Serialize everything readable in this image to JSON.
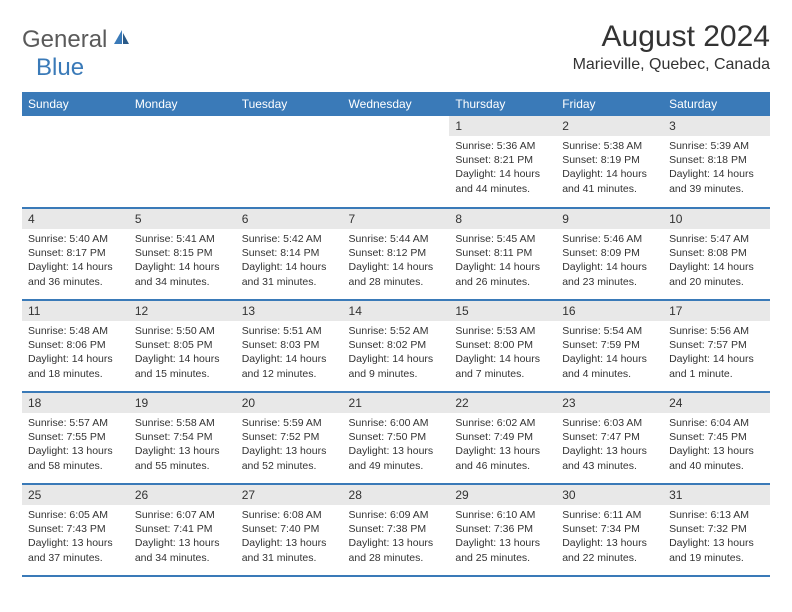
{
  "logo": {
    "general": "General",
    "blue": "Blue"
  },
  "title": "August 2024",
  "location": "Marieville, Quebec, Canada",
  "colors": {
    "header_bg": "#3a7ab8",
    "header_text": "#ffffff",
    "daynum_bg": "#e8e8e8",
    "border": "#3a7ab8",
    "logo_gray": "#5a5a5a",
    "logo_blue": "#3a7ab8"
  },
  "day_headers": [
    "Sunday",
    "Monday",
    "Tuesday",
    "Wednesday",
    "Thursday",
    "Friday",
    "Saturday"
  ],
  "weeks": [
    [
      null,
      null,
      null,
      null,
      {
        "n": "1",
        "sr": "5:36 AM",
        "ss": "8:21 PM",
        "dl": "14 hours and 44 minutes."
      },
      {
        "n": "2",
        "sr": "5:38 AM",
        "ss": "8:19 PM",
        "dl": "14 hours and 41 minutes."
      },
      {
        "n": "3",
        "sr": "5:39 AM",
        "ss": "8:18 PM",
        "dl": "14 hours and 39 minutes."
      }
    ],
    [
      {
        "n": "4",
        "sr": "5:40 AM",
        "ss": "8:17 PM",
        "dl": "14 hours and 36 minutes."
      },
      {
        "n": "5",
        "sr": "5:41 AM",
        "ss": "8:15 PM",
        "dl": "14 hours and 34 minutes."
      },
      {
        "n": "6",
        "sr": "5:42 AM",
        "ss": "8:14 PM",
        "dl": "14 hours and 31 minutes."
      },
      {
        "n": "7",
        "sr": "5:44 AM",
        "ss": "8:12 PM",
        "dl": "14 hours and 28 minutes."
      },
      {
        "n": "8",
        "sr": "5:45 AM",
        "ss": "8:11 PM",
        "dl": "14 hours and 26 minutes."
      },
      {
        "n": "9",
        "sr": "5:46 AM",
        "ss": "8:09 PM",
        "dl": "14 hours and 23 minutes."
      },
      {
        "n": "10",
        "sr": "5:47 AM",
        "ss": "8:08 PM",
        "dl": "14 hours and 20 minutes."
      }
    ],
    [
      {
        "n": "11",
        "sr": "5:48 AM",
        "ss": "8:06 PM",
        "dl": "14 hours and 18 minutes."
      },
      {
        "n": "12",
        "sr": "5:50 AM",
        "ss": "8:05 PM",
        "dl": "14 hours and 15 minutes."
      },
      {
        "n": "13",
        "sr": "5:51 AM",
        "ss": "8:03 PM",
        "dl": "14 hours and 12 minutes."
      },
      {
        "n": "14",
        "sr": "5:52 AM",
        "ss": "8:02 PM",
        "dl": "14 hours and 9 minutes."
      },
      {
        "n": "15",
        "sr": "5:53 AM",
        "ss": "8:00 PM",
        "dl": "14 hours and 7 minutes."
      },
      {
        "n": "16",
        "sr": "5:54 AM",
        "ss": "7:59 PM",
        "dl": "14 hours and 4 minutes."
      },
      {
        "n": "17",
        "sr": "5:56 AM",
        "ss": "7:57 PM",
        "dl": "14 hours and 1 minute."
      }
    ],
    [
      {
        "n": "18",
        "sr": "5:57 AM",
        "ss": "7:55 PM",
        "dl": "13 hours and 58 minutes."
      },
      {
        "n": "19",
        "sr": "5:58 AM",
        "ss": "7:54 PM",
        "dl": "13 hours and 55 minutes."
      },
      {
        "n": "20",
        "sr": "5:59 AM",
        "ss": "7:52 PM",
        "dl": "13 hours and 52 minutes."
      },
      {
        "n": "21",
        "sr": "6:00 AM",
        "ss": "7:50 PM",
        "dl": "13 hours and 49 minutes."
      },
      {
        "n": "22",
        "sr": "6:02 AM",
        "ss": "7:49 PM",
        "dl": "13 hours and 46 minutes."
      },
      {
        "n": "23",
        "sr": "6:03 AM",
        "ss": "7:47 PM",
        "dl": "13 hours and 43 minutes."
      },
      {
        "n": "24",
        "sr": "6:04 AM",
        "ss": "7:45 PM",
        "dl": "13 hours and 40 minutes."
      }
    ],
    [
      {
        "n": "25",
        "sr": "6:05 AM",
        "ss": "7:43 PM",
        "dl": "13 hours and 37 minutes."
      },
      {
        "n": "26",
        "sr": "6:07 AM",
        "ss": "7:41 PM",
        "dl": "13 hours and 34 minutes."
      },
      {
        "n": "27",
        "sr": "6:08 AM",
        "ss": "7:40 PM",
        "dl": "13 hours and 31 minutes."
      },
      {
        "n": "28",
        "sr": "6:09 AM",
        "ss": "7:38 PM",
        "dl": "13 hours and 28 minutes."
      },
      {
        "n": "29",
        "sr": "6:10 AM",
        "ss": "7:36 PM",
        "dl": "13 hours and 25 minutes."
      },
      {
        "n": "30",
        "sr": "6:11 AM",
        "ss": "7:34 PM",
        "dl": "13 hours and 22 minutes."
      },
      {
        "n": "31",
        "sr": "6:13 AM",
        "ss": "7:32 PM",
        "dl": "13 hours and 19 minutes."
      }
    ]
  ],
  "labels": {
    "sunrise": "Sunrise:",
    "sunset": "Sunset:",
    "daylight": "Daylight:"
  }
}
